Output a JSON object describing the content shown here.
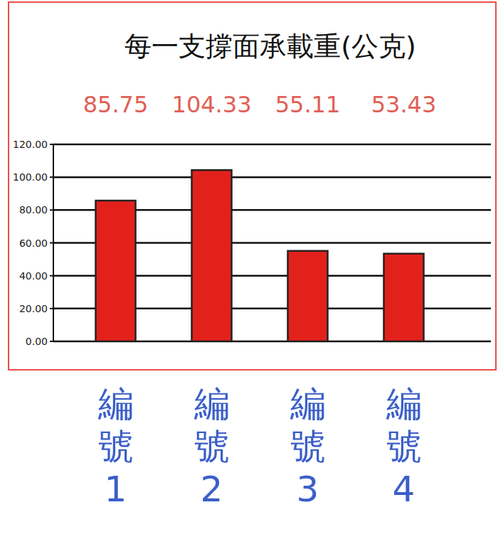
{
  "chart_data": {
    "type": "bar",
    "title": "每一支撐面承載重(公克)",
    "categories": [
      "編號1",
      "編號2",
      "編號3",
      "編號4"
    ],
    "values": [
      85.75,
      104.33,
      55.11,
      53.43
    ],
    "color": "#e3211c",
    "ylim": [
      0,
      120
    ],
    "yticks": [
      {
        "value": 0,
        "label": "0.00"
      },
      {
        "value": 20,
        "label": "20.00"
      },
      {
        "value": 40,
        "label": "40.00"
      },
      {
        "value": 60,
        "label": "60.00"
      },
      {
        "value": 80,
        "label": "80.00"
      },
      {
        "value": 100,
        "label": "100.00"
      },
      {
        "value": 120,
        "label": "120.00"
      }
    ],
    "grid": true,
    "data_labels": true
  }
}
